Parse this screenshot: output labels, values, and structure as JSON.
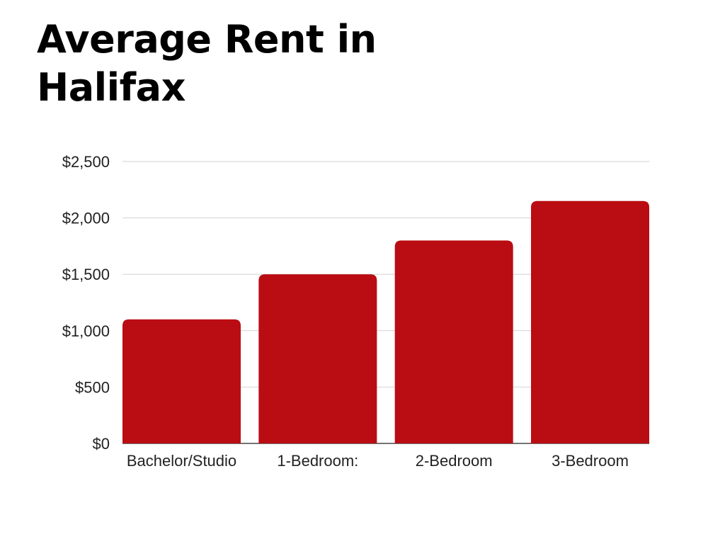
{
  "colors": {
    "bar": "#b90d13",
    "grid": "#d2d2d2",
    "axis": "#222222",
    "background": "#ffffff"
  },
  "chart_data": {
    "type": "bar",
    "title": "Average Rent in Halifax",
    "xlabel": "",
    "ylabel": "",
    "categories": [
      "Bachelor/Studio",
      "1-Bedroom:",
      "2-Bedroom",
      "3-Bedroom"
    ],
    "values": [
      1100,
      1500,
      1800,
      2150
    ],
    "ylim": [
      0,
      2500
    ],
    "yticks": [
      0,
      500,
      1000,
      1500,
      2000,
      2500
    ],
    "ytick_labels": [
      "$0",
      "$500",
      "$1,000",
      "$1,500",
      "$2,000",
      "$2,500"
    ],
    "grid": true,
    "legend": "none"
  }
}
